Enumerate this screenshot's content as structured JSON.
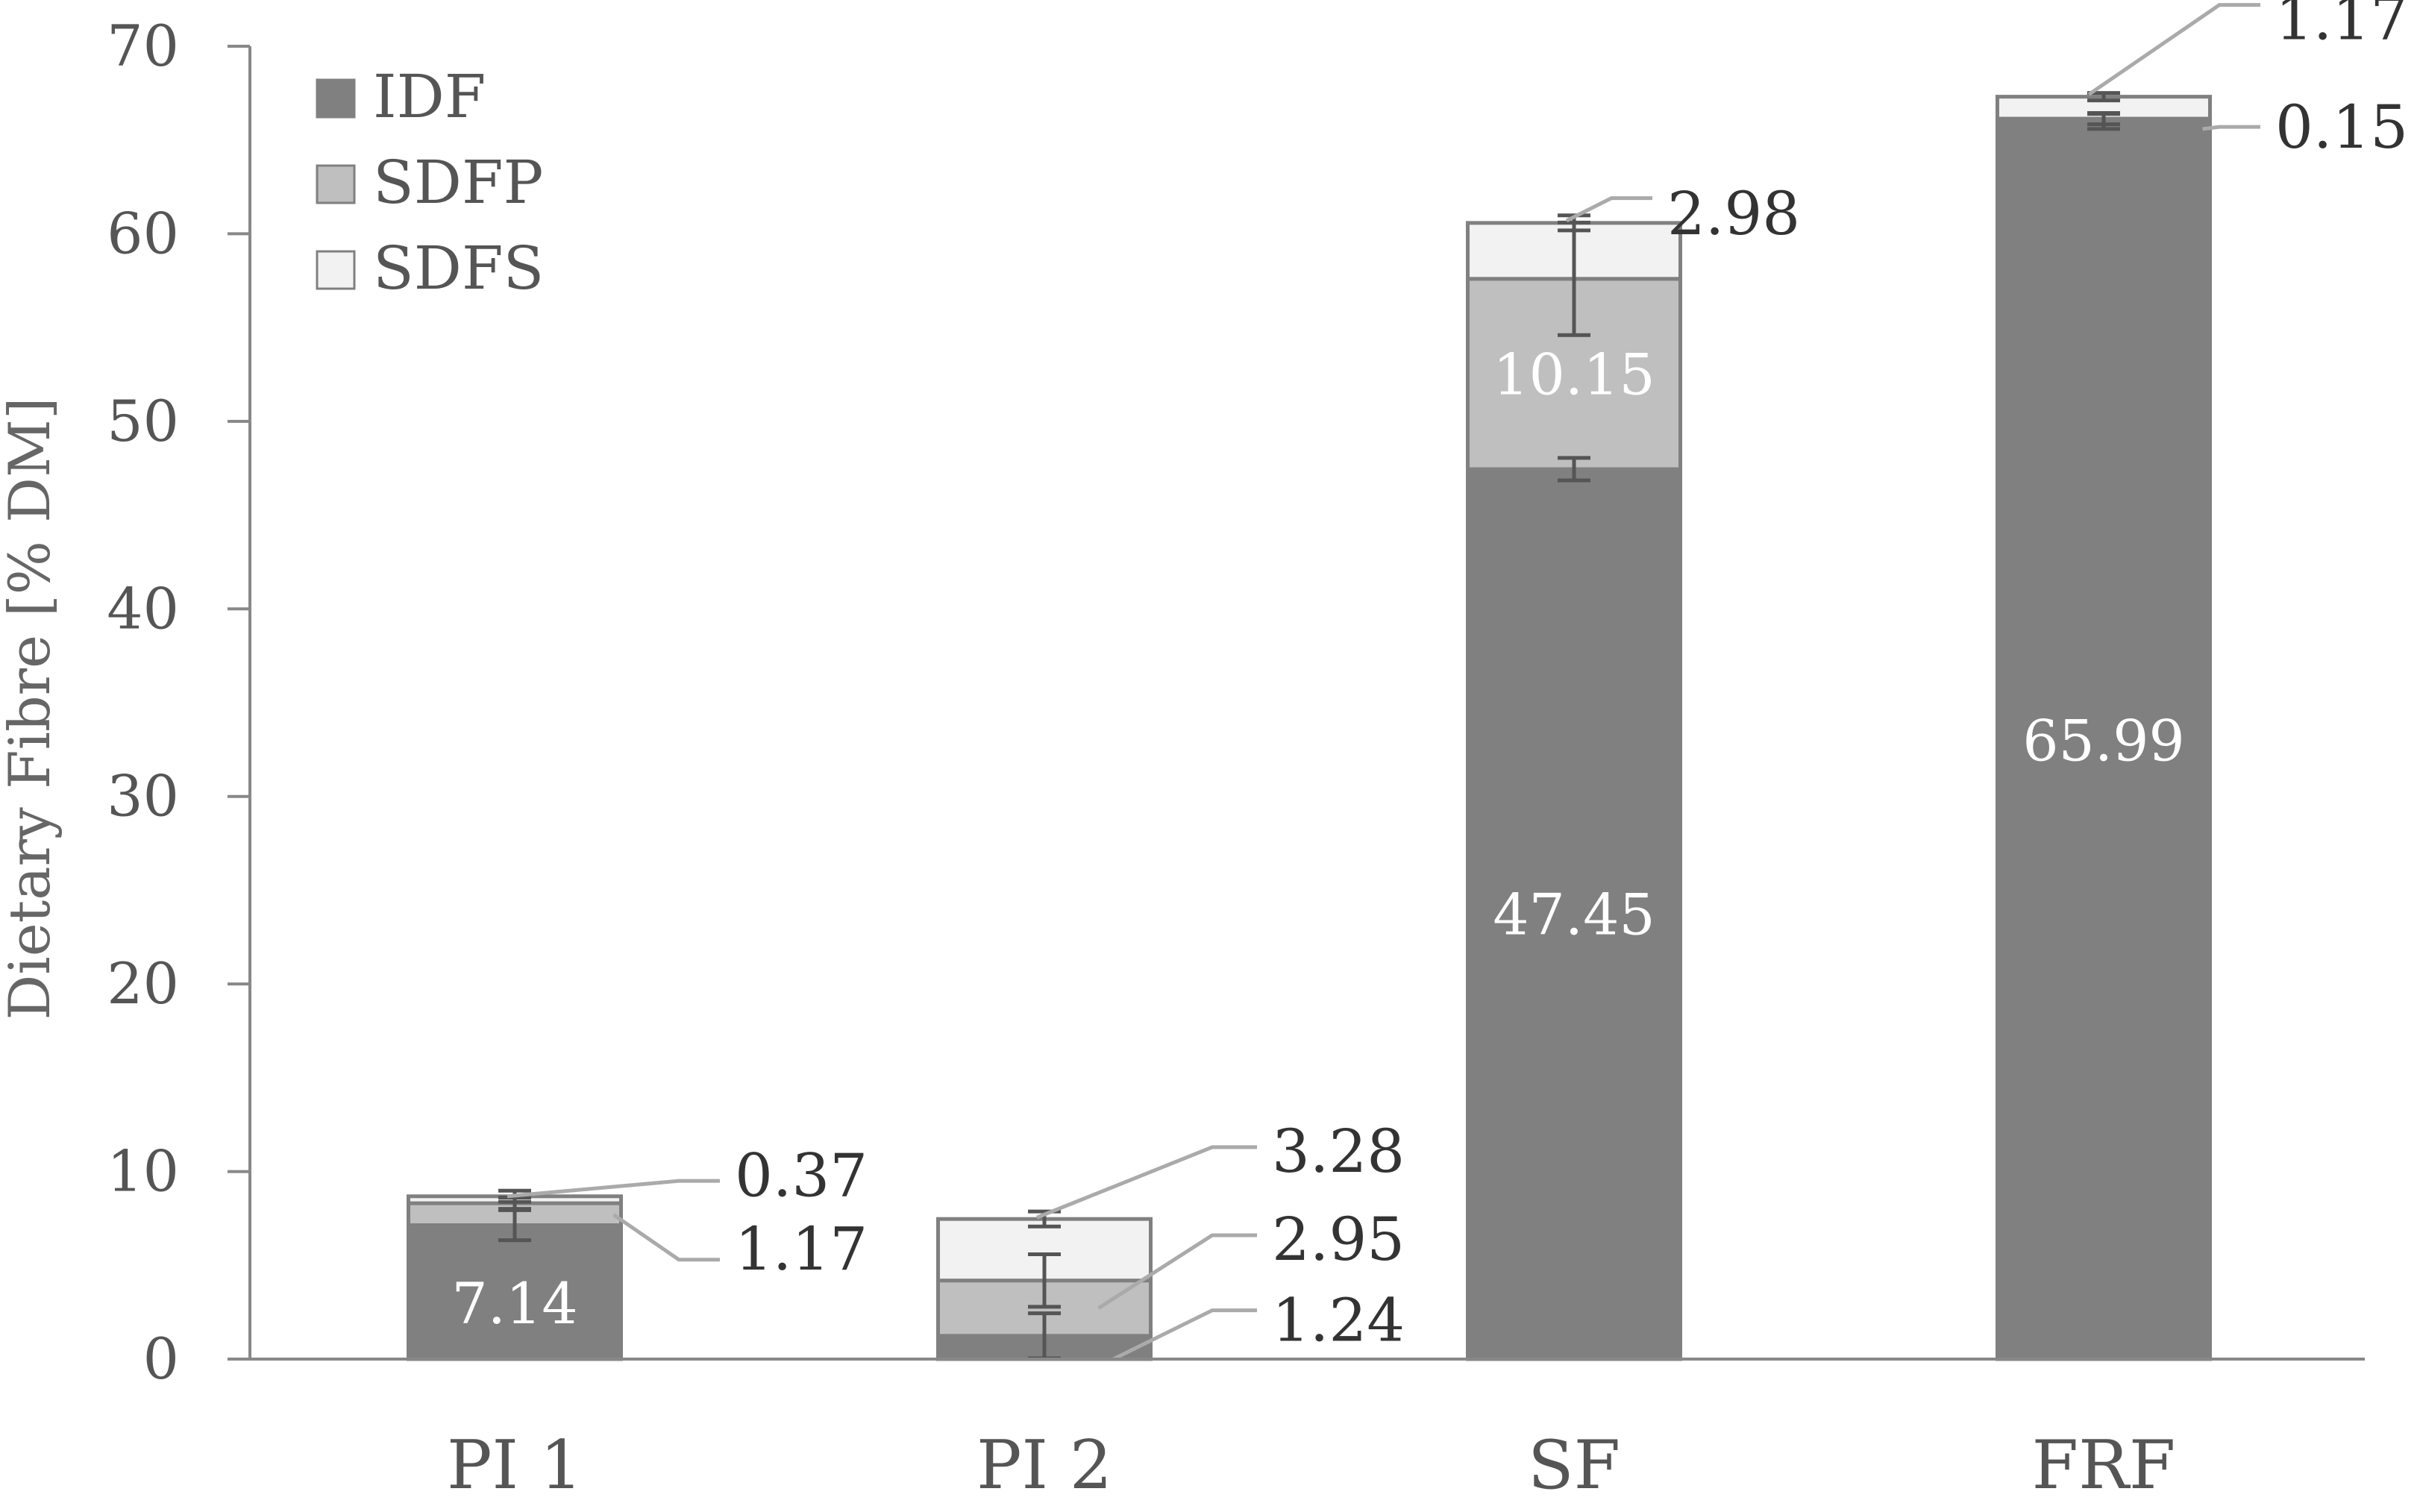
{
  "chart_data": {
    "type": "bar",
    "stacked": true,
    "categories": [
      "PI 1",
      "PI 2",
      "SF",
      "FRF"
    ],
    "ylabel": "Dietary Fibre [% DM]",
    "ylim": [
      0,
      70
    ],
    "yticks": [
      "0",
      "10",
      "20",
      "30",
      "40",
      "50",
      "60",
      "70"
    ],
    "grid": false,
    "legend_position": "top-left",
    "series": [
      {
        "name": "IDF",
        "color": "#808080",
        "values": [
          7.14,
          1.24,
          47.45,
          65.99
        ],
        "errors": [
          0.8,
          1.2,
          0.6,
          0.4
        ],
        "labels": [
          "7.14",
          "1.24",
          "47.45",
          "65.99"
        ]
      },
      {
        "name": "SDFP",
        "color": "#bfbfbf",
        "values": [
          1.17,
          2.95,
          10.15,
          0.15
        ],
        "errors": [
          0.3,
          1.4,
          3.0,
          0.3
        ],
        "labels": [
          "1.17",
          "2.95",
          "10.15",
          "0.15"
        ]
      },
      {
        "name": "SDFS",
        "color": "#f2f2f2",
        "values": [
          0.37,
          3.28,
          2.98,
          1.17
        ],
        "errors": [
          0.3,
          0.4,
          0.4,
          0.2
        ],
        "labels": [
          "0.37",
          "3.28",
          "2.98",
          "1.17"
        ]
      }
    ]
  }
}
